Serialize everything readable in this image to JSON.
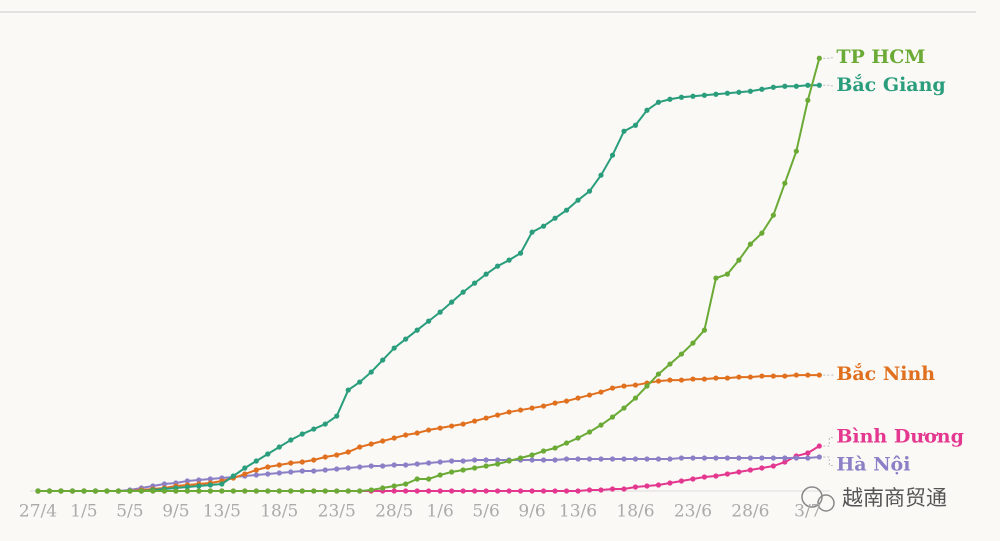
{
  "chart_data": {
    "type": "line",
    "categories": [
      "27/4",
      null,
      null,
      null,
      "1/5",
      null,
      null,
      null,
      "5/5",
      null,
      null,
      null,
      "9/5",
      null,
      null,
      null,
      "13/5",
      null,
      null,
      null,
      null,
      "18/5",
      null,
      null,
      null,
      null,
      "23/5",
      null,
      null,
      null,
      null,
      "28/5",
      null,
      null,
      null,
      "1/6",
      null,
      null,
      null,
      "5/6",
      null,
      null,
      null,
      "9/6",
      null,
      null,
      null,
      "13/6",
      null,
      null,
      null,
      null,
      "18/6",
      null,
      null,
      null,
      null,
      "23/6",
      null,
      null,
      null,
      null,
      "28/6",
      null,
      null,
      null,
      null,
      "3/7",
      null
    ],
    "ylim": [
      0,
      6500
    ],
    "watermark": "越南商贸通",
    "series": [
      {
        "name": "Bình Dương",
        "color": "#e4378f",
        "values": [
          0,
          0,
          0,
          0,
          0,
          0,
          0,
          0,
          0,
          0,
          0,
          0,
          0,
          0,
          0,
          0,
          0,
          0,
          0,
          0,
          0,
          0,
          0,
          0,
          0,
          0,
          0,
          0,
          0,
          0,
          0,
          0,
          0,
          0,
          0,
          0,
          0,
          0,
          0,
          0,
          0,
          0,
          0,
          0,
          0,
          0,
          0,
          0,
          14,
          14,
          28,
          28,
          56,
          70,
          84,
          112,
          140,
          168,
          196,
          210,
          238,
          266,
          294,
          322,
          350,
          406,
          490,
          532,
          630
        ]
      },
      {
        "name": "Hà Nội",
        "color": "#8b80c6",
        "values": [
          0,
          0,
          0,
          0,
          0,
          0,
          0,
          0,
          14,
          42,
          70,
          98,
          112,
          140,
          154,
          168,
          182,
          196,
          210,
          224,
          238,
          252,
          266,
          280,
          280,
          294,
          308,
          322,
          336,
          350,
          350,
          364,
          364,
          378,
          392,
          406,
          420,
          420,
          434,
          434,
          434,
          434,
          434,
          434,
          434,
          434,
          448,
          448,
          448,
          448,
          448,
          448,
          448,
          448,
          448,
          448,
          462,
          462,
          462,
          462,
          462,
          462,
          462,
          462,
          462,
          462,
          462,
          462,
          476
        ]
      },
      {
        "name": "Bắc Ninh",
        "color": "#e0701e",
        "values": [
          0,
          0,
          0,
          0,
          0,
          0,
          0,
          0,
          0,
          14,
          28,
          42,
          70,
          84,
          98,
          112,
          140,
          182,
          238,
          294,
          336,
          364,
          392,
          406,
          434,
          476,
          504,
          546,
          616,
          658,
          700,
          742,
          784,
          812,
          854,
          882,
          910,
          938,
          980,
          1022,
          1064,
          1106,
          1134,
          1162,
          1190,
          1232,
          1260,
          1302,
          1344,
          1386,
          1442,
          1470,
          1484,
          1512,
          1540,
          1554,
          1554,
          1568,
          1568,
          1582,
          1582,
          1596,
          1596,
          1610,
          1610,
          1610,
          1624,
          1624,
          1624
        ]
      },
      {
        "name": "Bắc Giang",
        "color": "#2a9d7c",
        "values": [
          0,
          0,
          0,
          0,
          0,
          0,
          0,
          0,
          0,
          0,
          14,
          28,
          42,
          56,
          70,
          84,
          98,
          210,
          322,
          420,
          518,
          616,
          714,
          798,
          868,
          938,
          1050,
          1414,
          1526,
          1666,
          1834,
          2002,
          2128,
          2254,
          2380,
          2506,
          2646,
          2786,
          2912,
          3038,
          3150,
          3234,
          3332,
          3626,
          3710,
          3822,
          3934,
          4074,
          4200,
          4424,
          4704,
          5040,
          5124,
          5334,
          5446,
          5488,
          5516,
          5530,
          5544,
          5558,
          5572,
          5586,
          5600,
          5628,
          5656,
          5670,
          5670,
          5684,
          5684
        ]
      },
      {
        "name": "TP HCM",
        "color": "#6aaa35",
        "values": [
          0,
          0,
          0,
          0,
          0,
          0,
          0,
          0,
          0,
          0,
          0,
          0,
          0,
          0,
          0,
          0,
          0,
          0,
          0,
          0,
          0,
          0,
          0,
          0,
          0,
          0,
          0,
          0,
          0,
          14,
          42,
          70,
          98,
          168,
          168,
          224,
          266,
          294,
          322,
          350,
          378,
          420,
          462,
          504,
          560,
          602,
          672,
          742,
          826,
          924,
          1036,
          1162,
          1302,
          1470,
          1638,
          1778,
          1918,
          2072,
          2254,
          2982,
          3038,
          3234,
          3458,
          3612,
          3864,
          4312,
          4760,
          5474,
          6062
        ]
      }
    ]
  }
}
